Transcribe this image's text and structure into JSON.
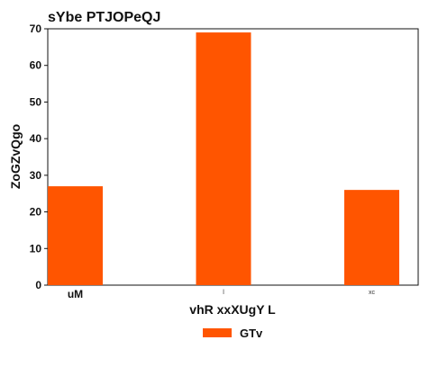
{
  "chart_data": {
    "type": "bar",
    "title": "sYbe PTJOPeQJ",
    "xlabel": "vhR xxXUgY L",
    "ylabel": "ZoGZvQgo",
    "categories": [
      "uM",
      "l",
      "xc"
    ],
    "series": [
      {
        "name": "GTv",
        "values": [
          27,
          69,
          26
        ],
        "color": "#ff5500"
      }
    ],
    "ylim": [
      0,
      70
    ],
    "yticks": [
      0,
      10,
      20,
      30,
      40,
      50,
      60,
      70
    ],
    "grid": false,
    "legend": "bottom-center"
  }
}
